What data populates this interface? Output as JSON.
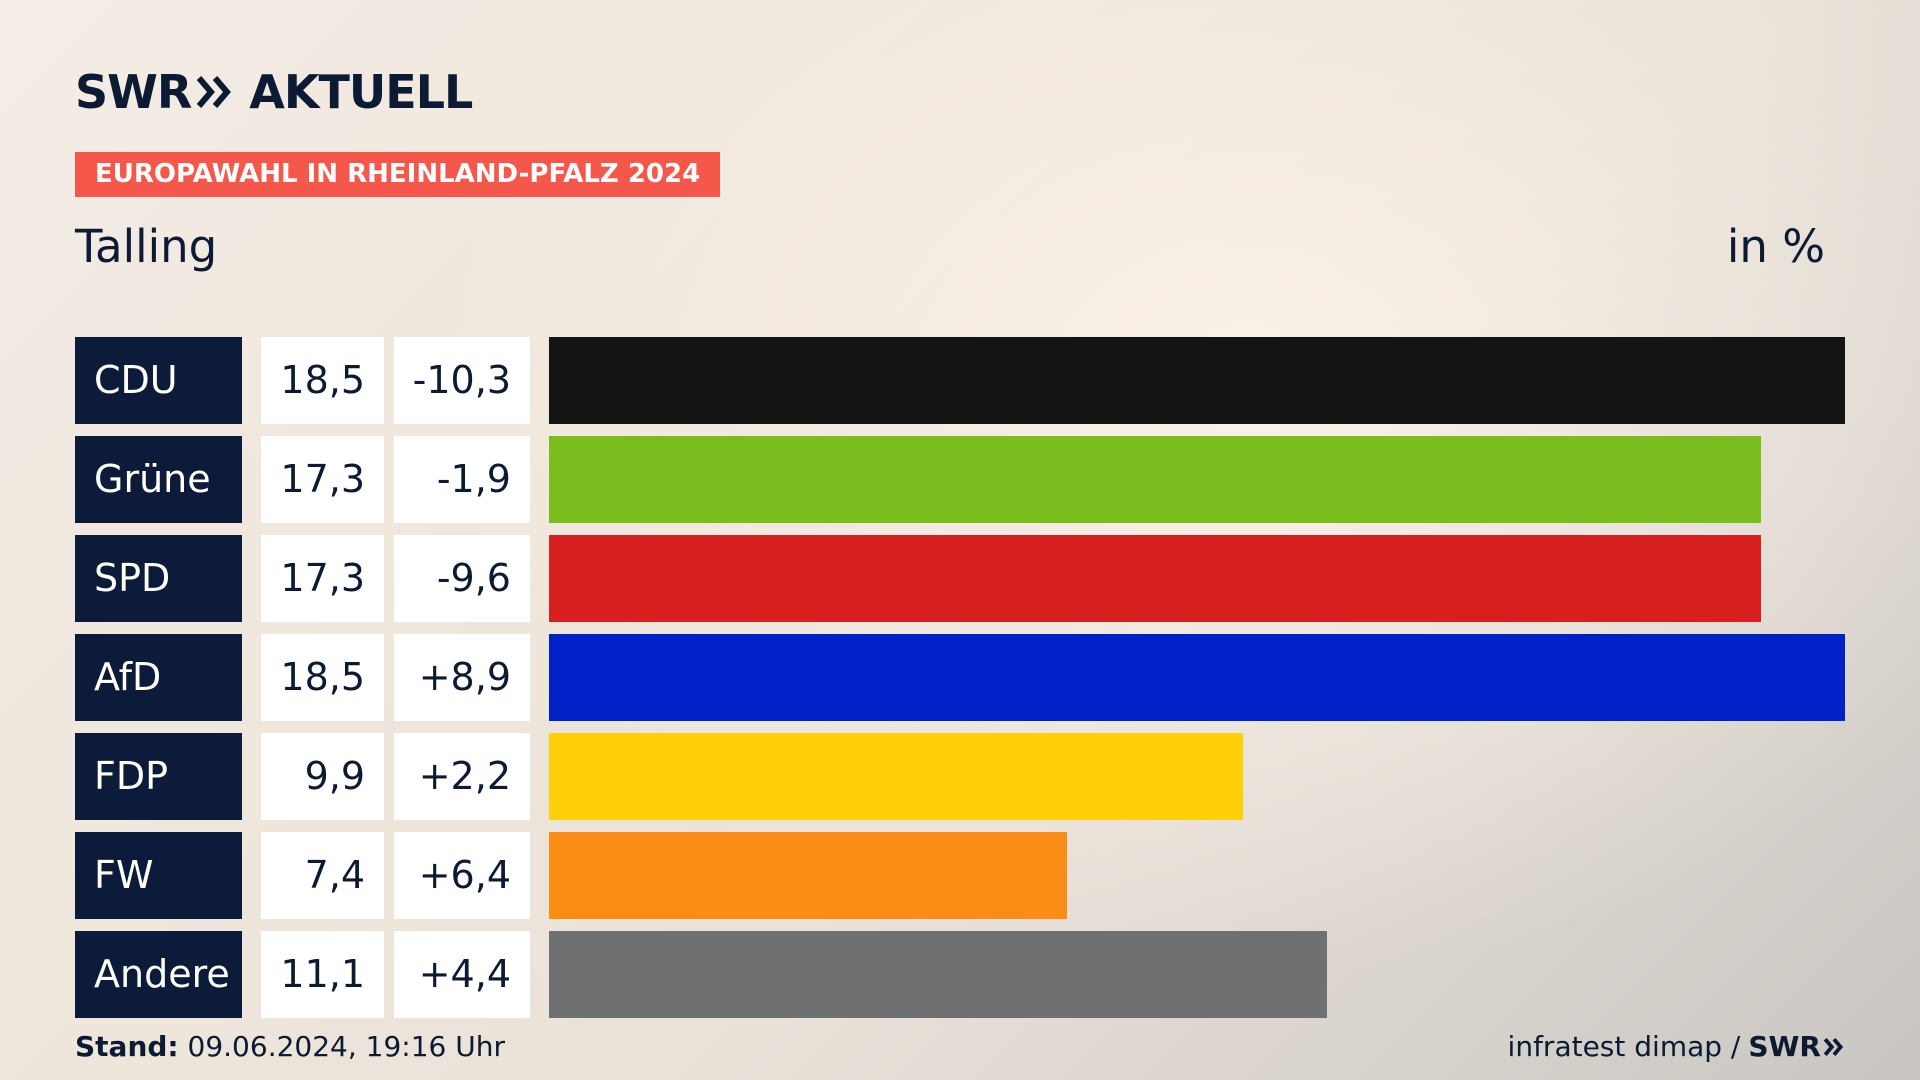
{
  "header": {
    "logo_left": "SWR",
    "logo_right": "AKTUELL",
    "banner": "EUROPAWAHL IN RHEINLAND-PFALZ 2024",
    "subtitle": "Talling",
    "unit": "in %"
  },
  "chart_data": {
    "type": "bar",
    "orientation": "horizontal",
    "categories": [
      "CDU",
      "Grüne",
      "SPD",
      "AfD",
      "FDP",
      "FW",
      "Andere"
    ],
    "values": [
      18.5,
      17.3,
      17.3,
      18.5,
      9.9,
      7.4,
      11.1
    ],
    "value_labels": [
      "18,5",
      "17,3",
      "17,3",
      "18,5",
      "9,9",
      "7,4",
      "11,1"
    ],
    "changes": [
      -10.3,
      -1.9,
      -9.6,
      8.9,
      2.2,
      6.4,
      4.4
    ],
    "change_labels": [
      "-10,3",
      "-1,9",
      "-9,6",
      "+8,9",
      "+2,2",
      "+6,4",
      "+4,4"
    ],
    "colors": [
      "#141414",
      "#79bd1e",
      "#d71f1f",
      "#0021c8",
      "#ffd00a",
      "#fb8c16",
      "#6f7072"
    ],
    "xlim": [
      0,
      18.5
    ],
    "grid": false,
    "legend": "none",
    "title": "",
    "xlabel": "",
    "ylabel": ""
  },
  "footer": {
    "stand_label": "Stand:",
    "stand_value": "09.06.2024, 19:16 Uhr",
    "source": "infratest dimap /",
    "source_logo": "SWR"
  }
}
